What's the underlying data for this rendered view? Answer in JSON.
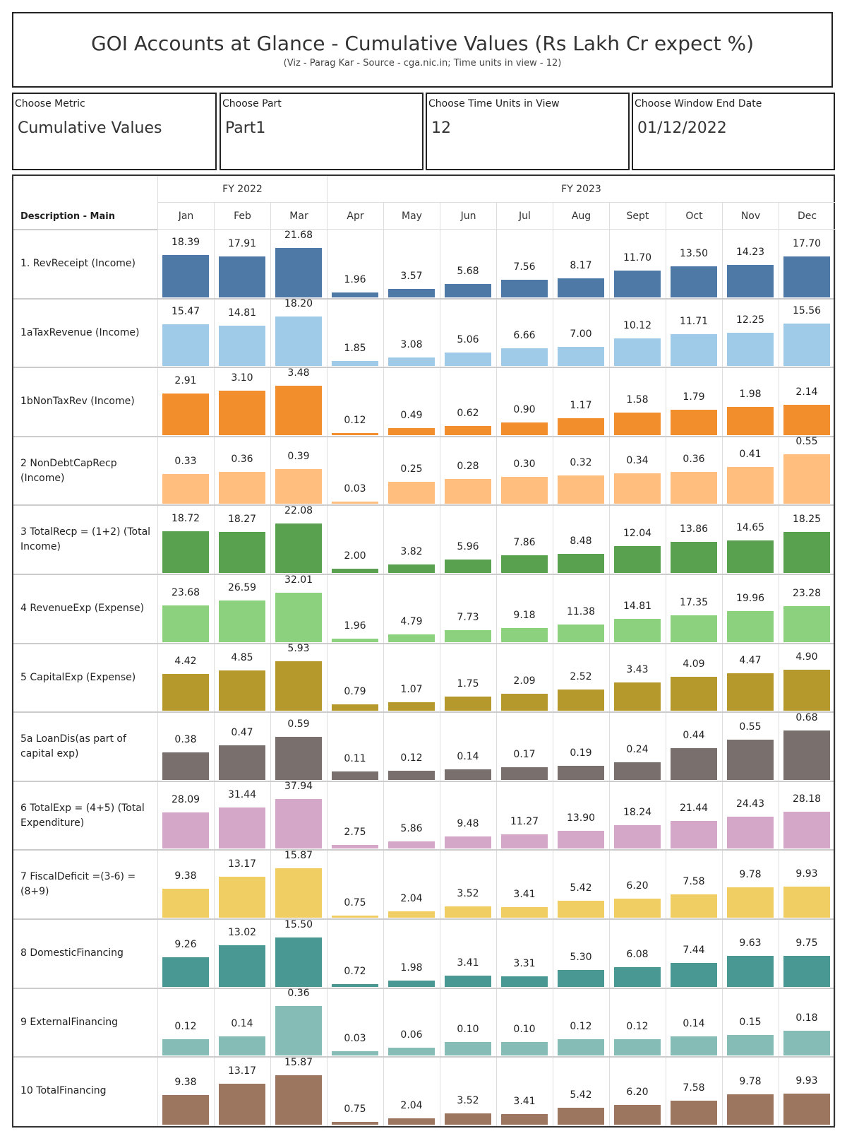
{
  "header": {
    "title": "GOI Accounts at Glance - Cumulative Values (Rs Lakh Cr expect %)",
    "subtitle": "(Viz - Parag Kar - Source - cga.nic.in; Time units in view - 12)"
  },
  "filters": [
    {
      "label": "Choose Metric",
      "value": "Cumulative Values"
    },
    {
      "label": "Choose Part",
      "value": "Part1"
    },
    {
      "label": "Choose Time Units in View",
      "value": "12"
    },
    {
      "label": "Choose Window End Date",
      "value": "01/12/2022"
    }
  ],
  "chart_data": {
    "type": "bar",
    "row_header": "Description - Main",
    "fiscal_years": [
      {
        "label": "FY 2022",
        "months": 3
      },
      {
        "label": "FY 2023",
        "months": 9
      }
    ],
    "categories": [
      "Jan",
      "Feb",
      "Mar",
      "Apr",
      "May",
      "Jun",
      "Jul",
      "Aug",
      "Sept",
      "Oct",
      "Nov",
      "Dec"
    ],
    "series": [
      {
        "name": "1. RevReceipt (Income)",
        "color": "#4e79a7",
        "values": [
          18.39,
          17.91,
          21.68,
          1.96,
          3.57,
          5.68,
          7.56,
          8.17,
          11.7,
          13.5,
          14.23,
          17.7
        ]
      },
      {
        "name": "1aTaxRevenue (Income)",
        "color": "#a0cbe8",
        "values": [
          15.47,
          14.81,
          18.2,
          1.85,
          3.08,
          5.06,
          6.66,
          7.0,
          10.12,
          11.71,
          12.25,
          15.56
        ]
      },
      {
        "name": "1bNonTaxRev (Income)",
        "color": "#f28e2b",
        "values": [
          2.91,
          3.1,
          3.48,
          0.12,
          0.49,
          0.62,
          0.9,
          1.17,
          1.58,
          1.79,
          1.98,
          2.14
        ]
      },
      {
        "name": "2 NonDebtCapRecp (Income)",
        "color": "#ffbe7d",
        "values": [
          0.33,
          0.36,
          0.39,
          0.03,
          0.25,
          0.28,
          0.3,
          0.32,
          0.34,
          0.36,
          0.41,
          0.55
        ]
      },
      {
        "name": "3 TotalRecp = (1+2) (Total Income)",
        "color": "#59a14f",
        "values": [
          18.72,
          18.27,
          22.08,
          2.0,
          3.82,
          5.96,
          7.86,
          8.48,
          12.04,
          13.86,
          14.65,
          18.25
        ]
      },
      {
        "name": "4 RevenueExp (Expense)",
        "color": "#8cd17d",
        "values": [
          23.68,
          26.59,
          32.01,
          1.96,
          4.79,
          7.73,
          9.18,
          11.38,
          14.81,
          17.35,
          19.96,
          23.28
        ]
      },
      {
        "name": "5 CapitalExp (Expense)",
        "color": "#b6992d",
        "values": [
          4.42,
          4.85,
          5.93,
          0.79,
          1.07,
          1.75,
          2.09,
          2.52,
          3.43,
          4.09,
          4.47,
          4.9
        ]
      },
      {
        "name": "5a LoanDis(as part of capital exp)",
        "color": "#79706e",
        "values": [
          0.38,
          0.47,
          0.59,
          0.11,
          0.12,
          0.14,
          0.17,
          0.19,
          0.24,
          0.44,
          0.55,
          0.68
        ]
      },
      {
        "name": "6 TotalExp = (4+5) (Total Expenditure)",
        "color": "#d4a6c8",
        "values": [
          28.09,
          31.44,
          37.94,
          2.75,
          5.86,
          9.48,
          11.27,
          13.9,
          18.24,
          21.44,
          24.43,
          28.18
        ]
      },
      {
        "name": "7 FiscalDeficit =(3-6) = (8+9)",
        "color": "#f1ce63",
        "values": [
          9.38,
          13.17,
          15.87,
          0.75,
          2.04,
          3.52,
          3.41,
          5.42,
          6.2,
          7.58,
          9.78,
          9.93
        ]
      },
      {
        "name": "8 DomesticFinancing",
        "color": "#499894",
        "values": [
          9.26,
          13.02,
          15.5,
          0.72,
          1.98,
          3.41,
          3.31,
          5.3,
          6.08,
          7.44,
          9.63,
          9.75
        ]
      },
      {
        "name": "9 ExternalFinancing",
        "color": "#86bcb6",
        "values": [
          0.12,
          0.14,
          0.36,
          0.03,
          0.06,
          0.1,
          0.1,
          0.12,
          0.12,
          0.14,
          0.15,
          0.18
        ]
      },
      {
        "name": "10 TotalFinancing",
        "color": "#9d7660",
        "values": [
          9.38,
          13.17,
          15.87,
          0.75,
          2.04,
          3.52,
          3.41,
          5.42,
          6.2,
          7.58,
          9.78,
          9.93
        ]
      }
    ]
  }
}
